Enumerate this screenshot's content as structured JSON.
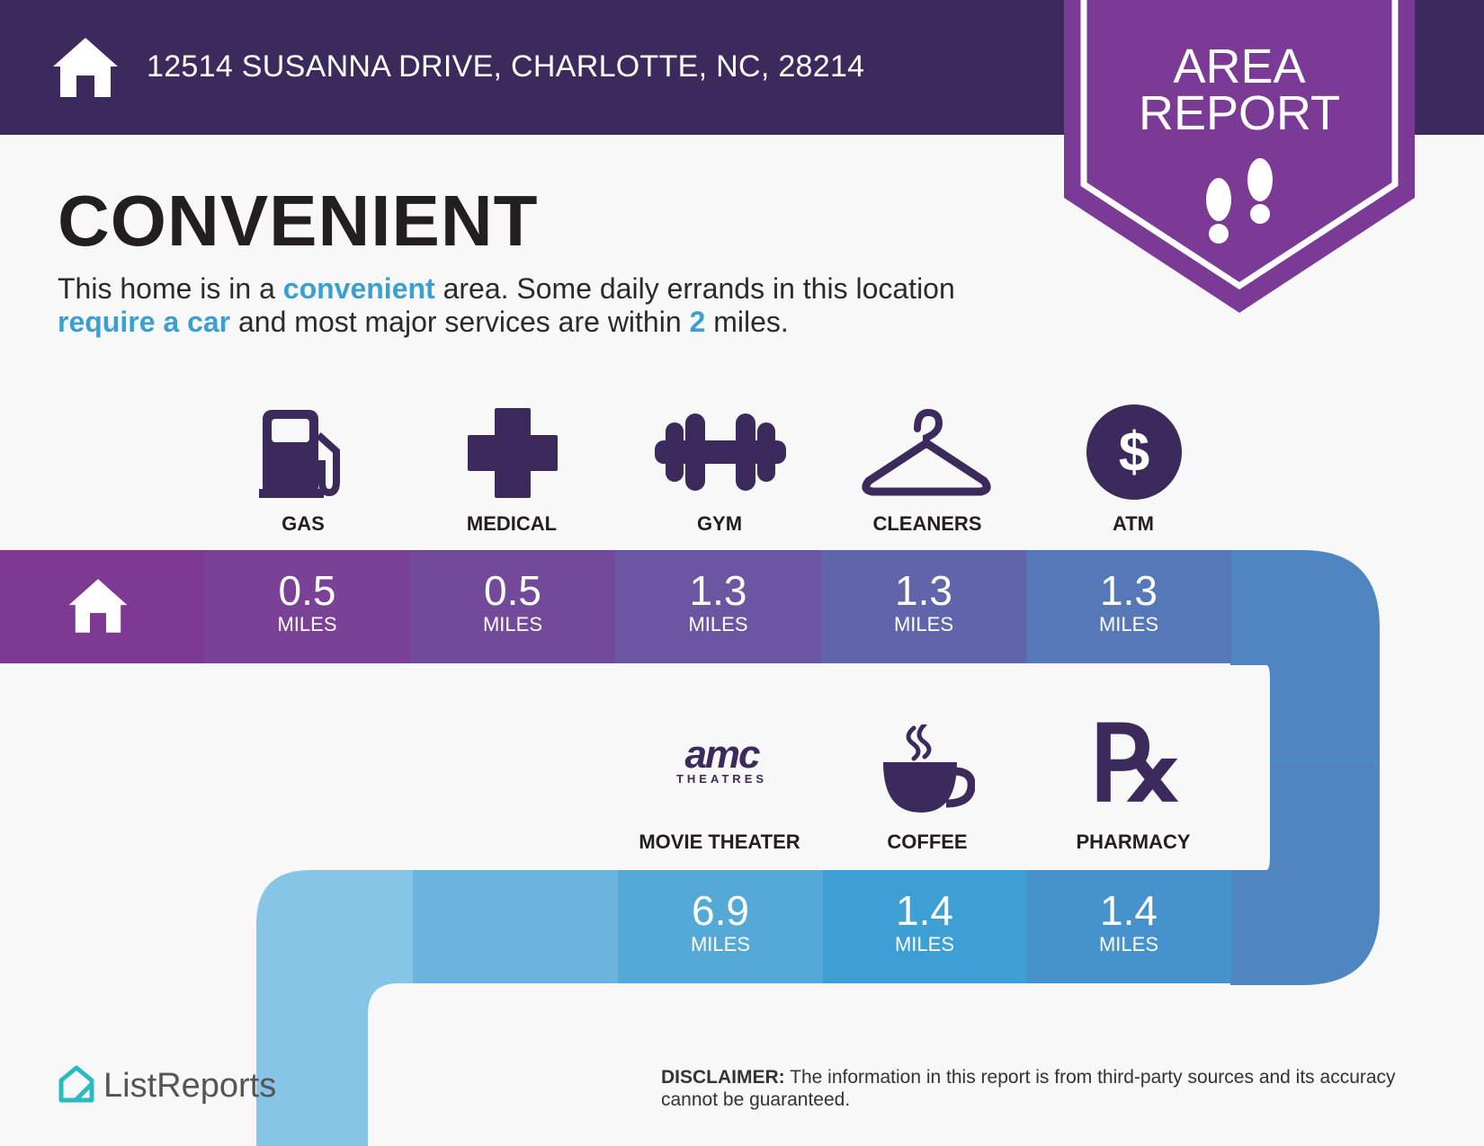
{
  "header": {
    "address": "12514 SUSANNA DRIVE, CHARLOTTE, NC, 28214"
  },
  "badge": {
    "line1": "AREA",
    "line2": "REPORT"
  },
  "summary": {
    "title": "CONVENIENT",
    "p1": "This home is in a ",
    "h1": "convenient",
    "p2": " area. Some daily errands in this location ",
    "h2": "require a car",
    "p3": " and most major services are within ",
    "h3": "2",
    "p4": " miles."
  },
  "services_row1": [
    {
      "label": "GAS",
      "value": "0.5",
      "unit": "MILES",
      "icon": "gas-pump-icon"
    },
    {
      "label": "MEDICAL",
      "value": "0.5",
      "unit": "MILES",
      "icon": "medical-cross-icon"
    },
    {
      "label": "GYM",
      "value": "1.3",
      "unit": "MILES",
      "icon": "dumbbell-icon"
    },
    {
      "label": "CLEANERS",
      "value": "1.3",
      "unit": "MILES",
      "icon": "hanger-icon"
    },
    {
      "label": "ATM",
      "value": "1.3",
      "unit": "MILES",
      "icon": "dollar-icon"
    }
  ],
  "services_row2": [
    {
      "label": "MOVIE THEATER",
      "value": "6.9",
      "unit": "MILES",
      "icon": "amc-logo"
    },
    {
      "label": "COFFEE",
      "value": "1.4",
      "unit": "MILES",
      "icon": "coffee-cup-icon"
    },
    {
      "label": "PHARMACY",
      "value": "1.4",
      "unit": "MILES",
      "icon": "rx-icon"
    }
  ],
  "amc": {
    "word": "amc",
    "sub": "THEATRES"
  },
  "rx": {
    "glyph": "℞"
  },
  "atm_symbol": "$",
  "disclaimer": {
    "label": "DISCLAIMER:",
    "text": " The information in this report is from third-party sources and its accuracy cannot be guaranteed."
  },
  "brand": {
    "name": "ListReports"
  },
  "colors": {
    "header": "#3d2a5c",
    "badge": "#7b3a96",
    "accent": "#3a9fd1",
    "dark_icon": "#3d2a5c"
  }
}
